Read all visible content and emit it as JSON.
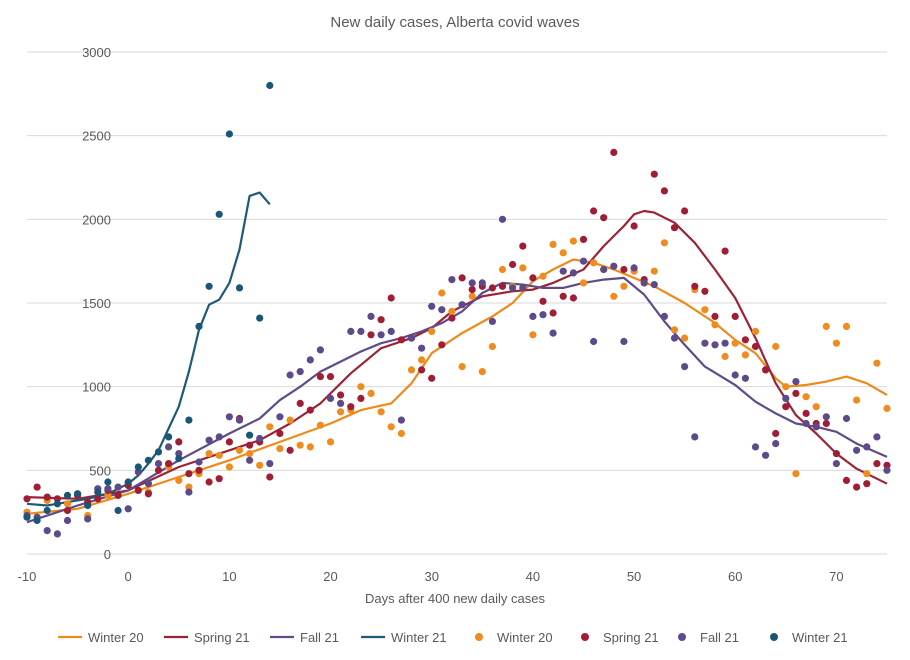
{
  "chart_data": {
    "type": "line",
    "title": "New daily cases, Alberta covid waves",
    "xlabel": "Days after 400 new daily cases",
    "ylabel": "",
    "xlim": [
      -10,
      75
    ],
    "ylim": [
      0,
      3000
    ],
    "xticks": [
      -10,
      0,
      10,
      20,
      30,
      40,
      50,
      60,
      70
    ],
    "yticks": [
      0,
      500,
      1000,
      1500,
      2000,
      2500,
      3000
    ],
    "grid": "horizontal",
    "legend_position": "bottom",
    "line_series": [
      {
        "name": "Winter 20",
        "color": "#ED8A1A",
        "x": [
          -10,
          -5,
          0,
          5,
          10,
          15,
          20,
          23,
          26,
          28,
          30,
          33,
          36,
          38,
          40,
          42,
          44,
          46,
          48,
          50,
          52,
          55,
          58,
          60,
          62,
          64,
          65,
          67,
          69,
          71,
          73,
          75
        ],
        "y": [
          240,
          270,
          360,
          460,
          560,
          670,
          780,
          860,
          900,
          1020,
          1200,
          1320,
          1420,
          1500,
          1630,
          1700,
          1760,
          1740,
          1700,
          1650,
          1600,
          1500,
          1380,
          1280,
          1200,
          1050,
          1000,
          1010,
          1030,
          1060,
          1020,
          950
        ]
      },
      {
        "name": "Spring 21",
        "color": "#9B2335",
        "x": [
          -10,
          -5,
          0,
          5,
          10,
          13,
          16,
          19,
          22,
          25,
          28,
          30,
          32,
          35,
          38,
          40,
          42,
          45,
          47,
          49,
          50,
          51,
          52,
          54,
          56,
          58,
          60,
          62,
          64,
          66,
          68,
          70,
          72,
          75
        ],
        "y": [
          340,
          330,
          380,
          520,
          620,
          680,
          780,
          900,
          1080,
          1230,
          1290,
          1350,
          1450,
          1540,
          1570,
          1580,
          1620,
          1700,
          1840,
          1960,
          2030,
          2050,
          2040,
          1980,
          1860,
          1700,
          1530,
          1290,
          1020,
          830,
          720,
          600,
          510,
          420
        ]
      },
      {
        "name": "Fall 21",
        "color": "#5E4B88",
        "x": [
          -10,
          -5,
          0,
          5,
          10,
          13,
          15,
          17,
          19,
          21,
          23,
          25,
          27,
          29,
          31,
          33,
          35,
          37,
          39,
          41,
          43,
          45,
          47,
          49,
          51,
          53,
          55,
          57,
          60,
          62,
          64,
          66,
          68,
          70,
          72,
          75
        ],
        "y": [
          190,
          290,
          380,
          560,
          720,
          810,
          920,
          1000,
          1090,
          1150,
          1210,
          1260,
          1290,
          1330,
          1380,
          1450,
          1560,
          1620,
          1610,
          1590,
          1590,
          1620,
          1640,
          1650,
          1550,
          1390,
          1250,
          1120,
          1010,
          910,
          840,
          780,
          760,
          730,
          660,
          580
        ]
      },
      {
        "name": "Winter 21",
        "color": "#1E5A78",
        "x": [
          -10,
          -8,
          -6,
          -4,
          -2,
          0,
          1,
          2,
          3,
          4,
          5,
          6,
          7,
          8,
          9,
          10,
          11,
          12,
          13,
          14
        ],
        "y": [
          300,
          290,
          310,
          330,
          360,
          420,
          470,
          540,
          620,
          750,
          880,
          1090,
          1340,
          1490,
          1520,
          1620,
          1820,
          2140,
          2160,
          2090
        ]
      }
    ],
    "scatter_series": [
      {
        "name": "Winter 20",
        "color": "#F08C1E",
        "x": [
          -10,
          -8,
          -6,
          -4,
          -2,
          0,
          2,
          4,
          5,
          6,
          7,
          8,
          9,
          10,
          11,
          12,
          13,
          14,
          15,
          16,
          17,
          18,
          19,
          20,
          21,
          22,
          23,
          24,
          25,
          26,
          27,
          28,
          29,
          30,
          31,
          32,
          33,
          34,
          35,
          36,
          37,
          38,
          39,
          40,
          41,
          42,
          43,
          44,
          45,
          46,
          47,
          48,
          49,
          50,
          51,
          52,
          53,
          54,
          55,
          56,
          57,
          58,
          59,
          60,
          61,
          62,
          63,
          64,
          65,
          66,
          67,
          68,
          69,
          70,
          71,
          72,
          73,
          74,
          75
        ],
        "y": [
          250,
          320,
          300,
          230,
          350,
          420,
          370,
          520,
          440,
          400,
          480,
          600,
          590,
          520,
          620,
          600,
          530,
          760,
          630,
          800,
          650,
          640,
          770,
          670,
          850,
          860,
          1000,
          960,
          850,
          760,
          720,
          1100,
          1160,
          1330,
          1560,
          1450,
          1120,
          1540,
          1090,
          1240,
          1700,
          1600,
          1710,
          1310,
          1660,
          1850,
          1800,
          1870,
          1620,
          1740,
          1700,
          1540,
          1600,
          1690,
          1620,
          1690,
          1860,
          1340,
          1290,
          1580,
          1460,
          1370,
          1180,
          1260,
          1190,
          1330,
          1100,
          1240,
          1000,
          480,
          940,
          880,
          1360,
          1260,
          1360,
          920,
          480,
          1140,
          870
        ]
      },
      {
        "name": "Spring 21",
        "color": "#A01E35",
        "x": [
          -10,
          -9,
          -8,
          -7,
          -6,
          -5,
          -4,
          -3,
          -2,
          -1,
          0,
          1,
          2,
          3,
          4,
          5,
          6,
          7,
          8,
          9,
          10,
          11,
          12,
          13,
          14,
          15,
          16,
          17,
          18,
          19,
          20,
          21,
          22,
          23,
          24,
          25,
          26,
          27,
          28,
          29,
          30,
          31,
          32,
          33,
          34,
          35,
          36,
          37,
          38,
          39,
          40,
          41,
          42,
          43,
          44,
          45,
          46,
          47,
          48,
          49,
          50,
          51,
          52,
          53,
          54,
          55,
          56,
          57,
          58,
          59,
          60,
          61,
          62,
          63,
          64,
          65,
          66,
          67,
          68,
          69,
          70,
          71,
          72,
          73,
          74,
          75
        ],
        "y": [
          330,
          400,
          340,
          330,
          260,
          350,
          310,
          330,
          380,
          350,
          410,
          380,
          360,
          500,
          540,
          670,
          480,
          500,
          430,
          450,
          670,
          810,
          650,
          670,
          460,
          720,
          620,
          900,
          860,
          1060,
          1060,
          950,
          880,
          930,
          1310,
          1400,
          1530,
          1280,
          1290,
          1100,
          1050,
          1250,
          1410,
          1650,
          1580,
          1600,
          1590,
          1600,
          1730,
          1840,
          1650,
          1510,
          1440,
          1540,
          1530,
          1880,
          2050,
          2010,
          2400,
          1700,
          1960,
          1640,
          2270,
          2170,
          1950,
          2050,
          1600,
          1570,
          1420,
          1810,
          1420,
          1280,
          1240,
          1100,
          720,
          880,
          960,
          840,
          780,
          780,
          600,
          440,
          400,
          420,
          540,
          530
        ]
      },
      {
        "name": "Fall 21",
        "color": "#5C4A8A",
        "x": [
          -10,
          -9,
          -8,
          -7,
          -6,
          -5,
          -4,
          -3,
          -2,
          -1,
          0,
          1,
          2,
          3,
          4,
          5,
          6,
          7,
          8,
          9,
          10,
          11,
          12,
          13,
          14,
          15,
          16,
          17,
          18,
          19,
          20,
          21,
          22,
          23,
          24,
          25,
          26,
          27,
          28,
          29,
          30,
          31,
          32,
          33,
          34,
          35,
          36,
          37,
          38,
          39,
          40,
          41,
          42,
          43,
          44,
          45,
          46,
          47,
          48,
          49,
          50,
          51,
          52,
          53,
          54,
          55,
          56,
          57,
          58,
          59,
          60,
          61,
          62,
          63,
          64,
          65,
          66,
          67,
          68,
          69,
          70,
          71,
          72,
          73,
          74,
          75
        ],
        "y": [
          230,
          220,
          140,
          120,
          200,
          360,
          210,
          390,
          390,
          400,
          270,
          490,
          420,
          540,
          640,
          600,
          370,
          550,
          680,
          700,
          820,
          800,
          560,
          690,
          540,
          820,
          1070,
          1090,
          1160,
          1220,
          930,
          900,
          1330,
          1330,
          1420,
          1310,
          1330,
          800,
          1290,
          1230,
          1480,
          1460,
          1640,
          1490,
          1620,
          1620,
          1390,
          2000,
          1590,
          1590,
          1420,
          1430,
          1320,
          1690,
          1680,
          1750,
          1270,
          1700,
          1720,
          1270,
          1710,
          1620,
          1610,
          1420,
          1290,
          1120,
          700,
          1260,
          1250,
          1260,
          1070,
          1050,
          640,
          590,
          660,
          930,
          1030,
          780,
          760,
          820,
          540,
          810,
          620,
          640,
          700,
          500
        ]
      },
      {
        "name": "Winter 21",
        "color": "#1A5776",
        "x": [
          -10,
          -9,
          -8,
          -7,
          -6,
          -5,
          -4,
          -3,
          -2,
          -1,
          0,
          1,
          2,
          3,
          4,
          5,
          6,
          7,
          8,
          9,
          10,
          11,
          12,
          13,
          14
        ],
        "y": [
          220,
          200,
          260,
          300,
          350,
          360,
          290,
          370,
          430,
          260,
          430,
          520,
          560,
          610,
          700,
          570,
          800,
          1360,
          1600,
          2030,
          2510,
          1590,
          710,
          1410,
          2800
        ]
      }
    ]
  }
}
